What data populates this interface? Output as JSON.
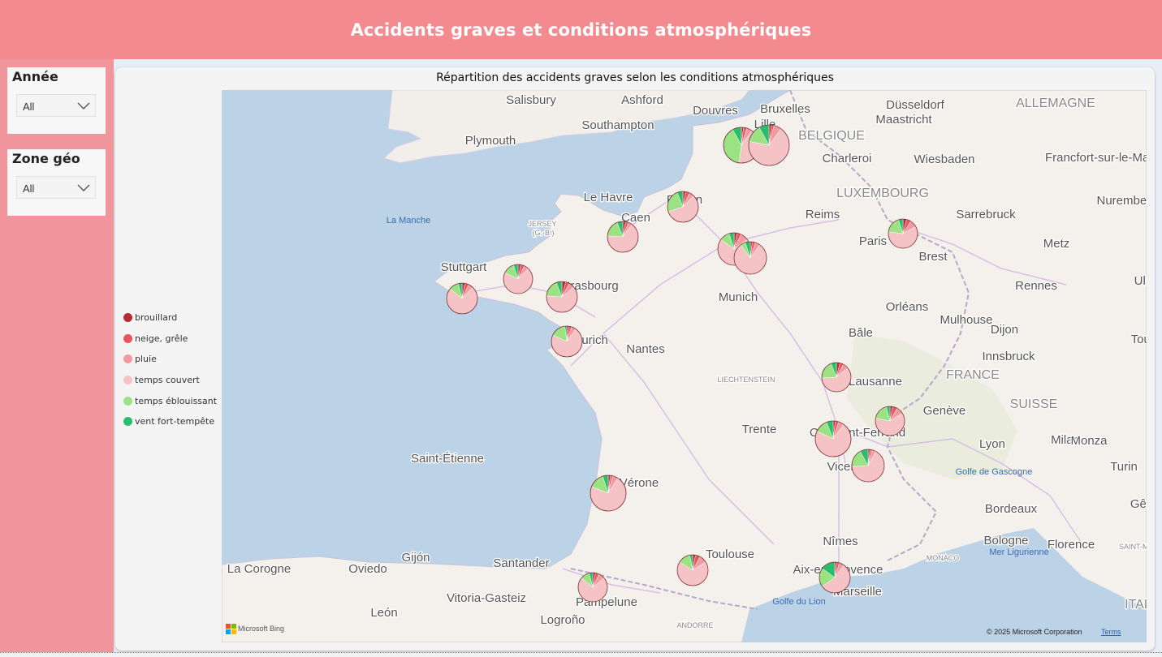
{
  "header": {
    "title": "Accidents graves et conditions atmosphériques"
  },
  "filters": [
    {
      "label": "Année",
      "value": "All"
    },
    {
      "label": "Zone géo",
      "value": "All"
    }
  ],
  "visual": {
    "title": "Répartition des accidents graves selon les conditions atmosphériques"
  },
  "legend": [
    {
      "label": "brouillard",
      "color": "#b52b36"
    },
    {
      "label": "neige, grêle",
      "color": "#e8555e"
    },
    {
      "label": "pluie",
      "color": "#f19ba1"
    },
    {
      "label": "temps couvert",
      "color": "#f5c3c5"
    },
    {
      "label": "temps éblouissant",
      "color": "#9be382"
    },
    {
      "label": "vent fort-tempête",
      "color": "#2bbd6e"
    }
  ],
  "map": {
    "places": [
      {
        "name": "Salisbury",
        "type": "city"
      },
      {
        "name": "Ashford",
        "type": "city"
      },
      {
        "name": "Douvres",
        "type": "city"
      },
      {
        "name": "Bruxelles",
        "type": "city"
      },
      {
        "name": "Düsseldorf",
        "type": "city"
      },
      {
        "name": "ALLEMAGNE",
        "type": "country"
      },
      {
        "name": "Southampton",
        "type": "city"
      },
      {
        "name": "Lille",
        "type": "city"
      },
      {
        "name": "Maastricht",
        "type": "city"
      },
      {
        "name": "BELGIQUE",
        "type": "country"
      },
      {
        "name": "Plymouth",
        "type": "city"
      },
      {
        "name": "Charleroi",
        "type": "city"
      },
      {
        "name": "Wiesbaden",
        "type": "city"
      },
      {
        "name": "Francfort-sur-le-Main",
        "type": "city"
      },
      {
        "name": "LUXEMBOURG",
        "type": "country"
      },
      {
        "name": "Le Havre",
        "type": "city"
      },
      {
        "name": "Rouen",
        "type": "city"
      },
      {
        "name": "Nuremberg",
        "type": "city"
      },
      {
        "name": "La Manche",
        "type": "sea"
      },
      {
        "name": "JERSEY",
        "type": "small"
      },
      {
        "name": "(G.-B.)",
        "type": "small"
      },
      {
        "name": "Caen",
        "type": "city"
      },
      {
        "name": "Reims",
        "type": "city"
      },
      {
        "name": "Sarrebruck",
        "type": "city"
      },
      {
        "name": "Paris",
        "type": "city"
      },
      {
        "name": "Metz",
        "type": "city"
      },
      {
        "name": "Stuttgart",
        "type": "city"
      },
      {
        "name": "Brest",
        "type": "city"
      },
      {
        "name": "Strasbourg",
        "type": "city"
      },
      {
        "name": "Rennes",
        "type": "city"
      },
      {
        "name": "Ulm",
        "type": "city"
      },
      {
        "name": "Munich",
        "type": "city"
      },
      {
        "name": "Orléans",
        "type": "city"
      },
      {
        "name": "Mulhouse",
        "type": "city"
      },
      {
        "name": "Bâle",
        "type": "city"
      },
      {
        "name": "Dijon",
        "type": "city"
      },
      {
        "name": "Zurich",
        "type": "city"
      },
      {
        "name": "Nantes",
        "type": "city"
      },
      {
        "name": "Tours",
        "type": "city"
      },
      {
        "name": "Innsbruck",
        "type": "city"
      },
      {
        "name": "LIECHTENSTEIN",
        "type": "small"
      },
      {
        "name": "FRANCE",
        "type": "country"
      },
      {
        "name": "Lausanne",
        "type": "city"
      },
      {
        "name": "SUISSE",
        "type": "country"
      },
      {
        "name": "Genève",
        "type": "city"
      },
      {
        "name": "Trente",
        "type": "city"
      },
      {
        "name": "Clermont-Ferrand",
        "type": "city"
      },
      {
        "name": "Lyon",
        "type": "city"
      },
      {
        "name": "Milan",
        "type": "city"
      },
      {
        "name": "Monza",
        "type": "city"
      },
      {
        "name": "Vicence",
        "type": "city"
      },
      {
        "name": "Saint-Étienne",
        "type": "city"
      },
      {
        "name": "Golfe de Gascogne",
        "type": "sea"
      },
      {
        "name": "Turin",
        "type": "city"
      },
      {
        "name": "Vérone",
        "type": "city"
      },
      {
        "name": "Bordeaux",
        "type": "city"
      },
      {
        "name": "Gênes",
        "type": "city"
      },
      {
        "name": "Bologne",
        "type": "city"
      },
      {
        "name": "Mer Ligurienne",
        "type": "sea"
      },
      {
        "name": "Nîmes",
        "type": "city"
      },
      {
        "name": "Florence",
        "type": "city"
      },
      {
        "name": "Toulouse",
        "type": "city"
      },
      {
        "name": "MONACO",
        "type": "small"
      },
      {
        "name": "SAINT-MARIN",
        "type": "small"
      },
      {
        "name": "Gijón",
        "type": "city"
      },
      {
        "name": "Santander",
        "type": "city"
      },
      {
        "name": "Aix-en-Provence",
        "type": "city"
      },
      {
        "name": "La Corogne",
        "type": "city"
      },
      {
        "name": "Oviedo",
        "type": "city"
      },
      {
        "name": "Golfe du Lion",
        "type": "sea"
      },
      {
        "name": "Vitoria-Gasteiz",
        "type": "city"
      },
      {
        "name": "Pampelune",
        "type": "city"
      },
      {
        "name": "Marseille",
        "type": "city"
      },
      {
        "name": "León",
        "type": "city"
      },
      {
        "name": "Logroño",
        "type": "city"
      },
      {
        "name": "ANDORRE",
        "type": "small"
      },
      {
        "name": "ITALIE",
        "type": "country"
      }
    ],
    "logo": "Microsoft Bing",
    "copyright": "© 2025 Microsoft Corporation",
    "terms": "Terms"
  }
}
